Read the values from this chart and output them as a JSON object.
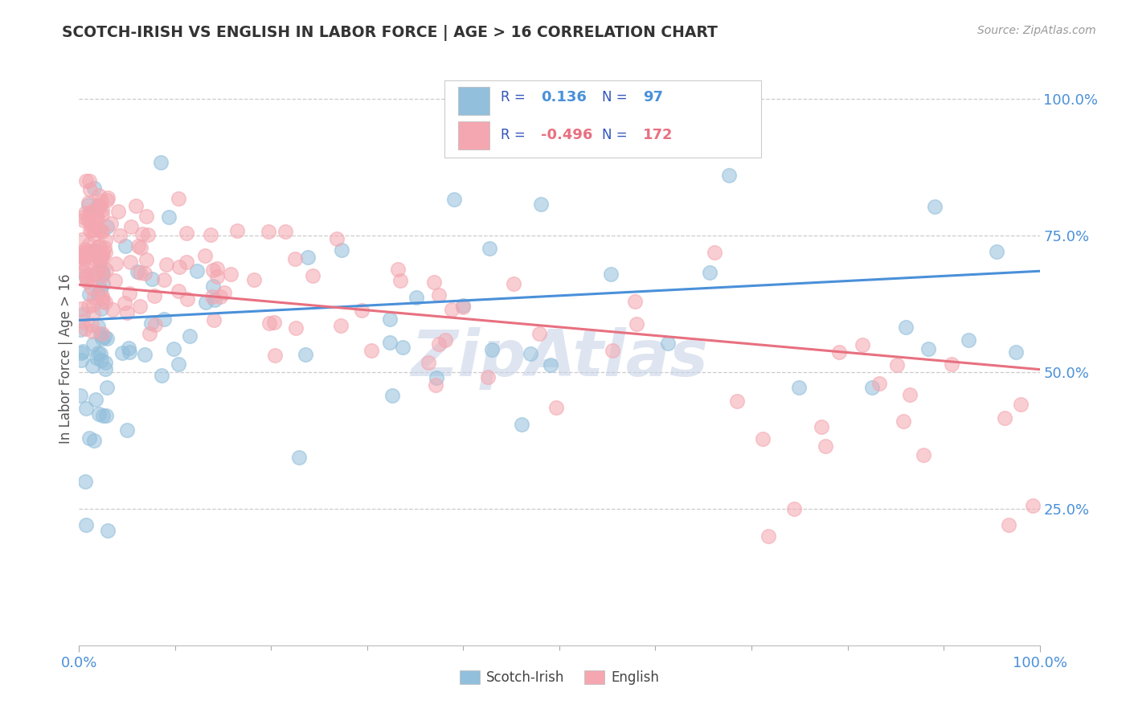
{
  "title": "SCOTCH-IRISH VS ENGLISH IN LABOR FORCE | AGE > 16 CORRELATION CHART",
  "source_text": "Source: ZipAtlas.com",
  "ylabel": "In Labor Force | Age > 16",
  "xmin": 0.0,
  "xmax": 1.0,
  "ymin": 0.0,
  "ymax": 1.05,
  "x_tick_labels": [
    "0.0%",
    "100.0%"
  ],
  "y_tick_labels": [
    "25.0%",
    "50.0%",
    "75.0%",
    "100.0%"
  ],
  "y_tick_positions": [
    0.25,
    0.5,
    0.75,
    1.0
  ],
  "scotch_irish_R": 0.136,
  "scotch_irish_N": 97,
  "english_R": -0.496,
  "english_N": 172,
  "scotch_irish_color": "#92BFDB",
  "english_color": "#F4A7B0",
  "scotch_irish_line_color": "#4A90D9",
  "english_line_color": "#E87080",
  "legend_text_color": "#3355BB",
  "watermark_text": "ZipAtlas",
  "watermark_color": "#C8D4E8",
  "background_color": "#FFFFFF",
  "grid_color": "#CCCCCC",
  "title_color": "#333333",
  "axis_label_color": "#4A90D9"
}
